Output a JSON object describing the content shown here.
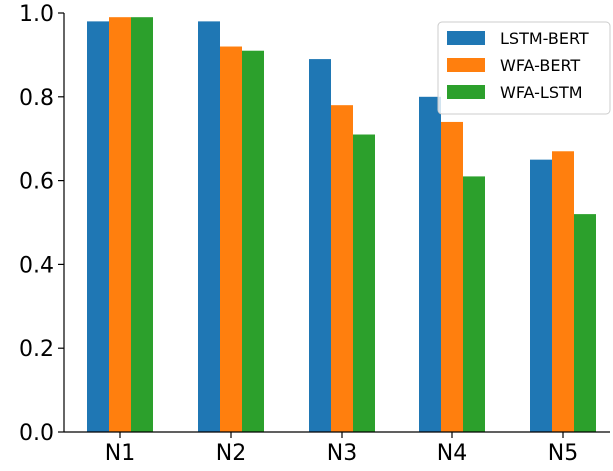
{
  "chart_data": {
    "type": "bar",
    "categories": [
      "N1",
      "N2",
      "N3",
      "N4",
      "N5"
    ],
    "series": [
      {
        "name": "LSTM-BERT",
        "color": "#1f77b4",
        "values": [
          0.98,
          0.98,
          0.89,
          0.8,
          0.65
        ]
      },
      {
        "name": "WFA-BERT",
        "color": "#ff7f0e",
        "values": [
          0.99,
          0.92,
          0.78,
          0.74,
          0.67
        ]
      },
      {
        "name": "WFA-LSTM",
        "color": "#2ca02c",
        "values": [
          0.99,
          0.91,
          0.71,
          0.61,
          0.52
        ]
      }
    ],
    "ylim": [
      0,
      1.0
    ],
    "yticks": [
      "0.0",
      "0.2",
      "0.4",
      "0.6",
      "0.8",
      "1.0"
    ],
    "title": "",
    "xlabel": "",
    "ylabel": "",
    "legend_position": "top-right",
    "grid": false
  }
}
